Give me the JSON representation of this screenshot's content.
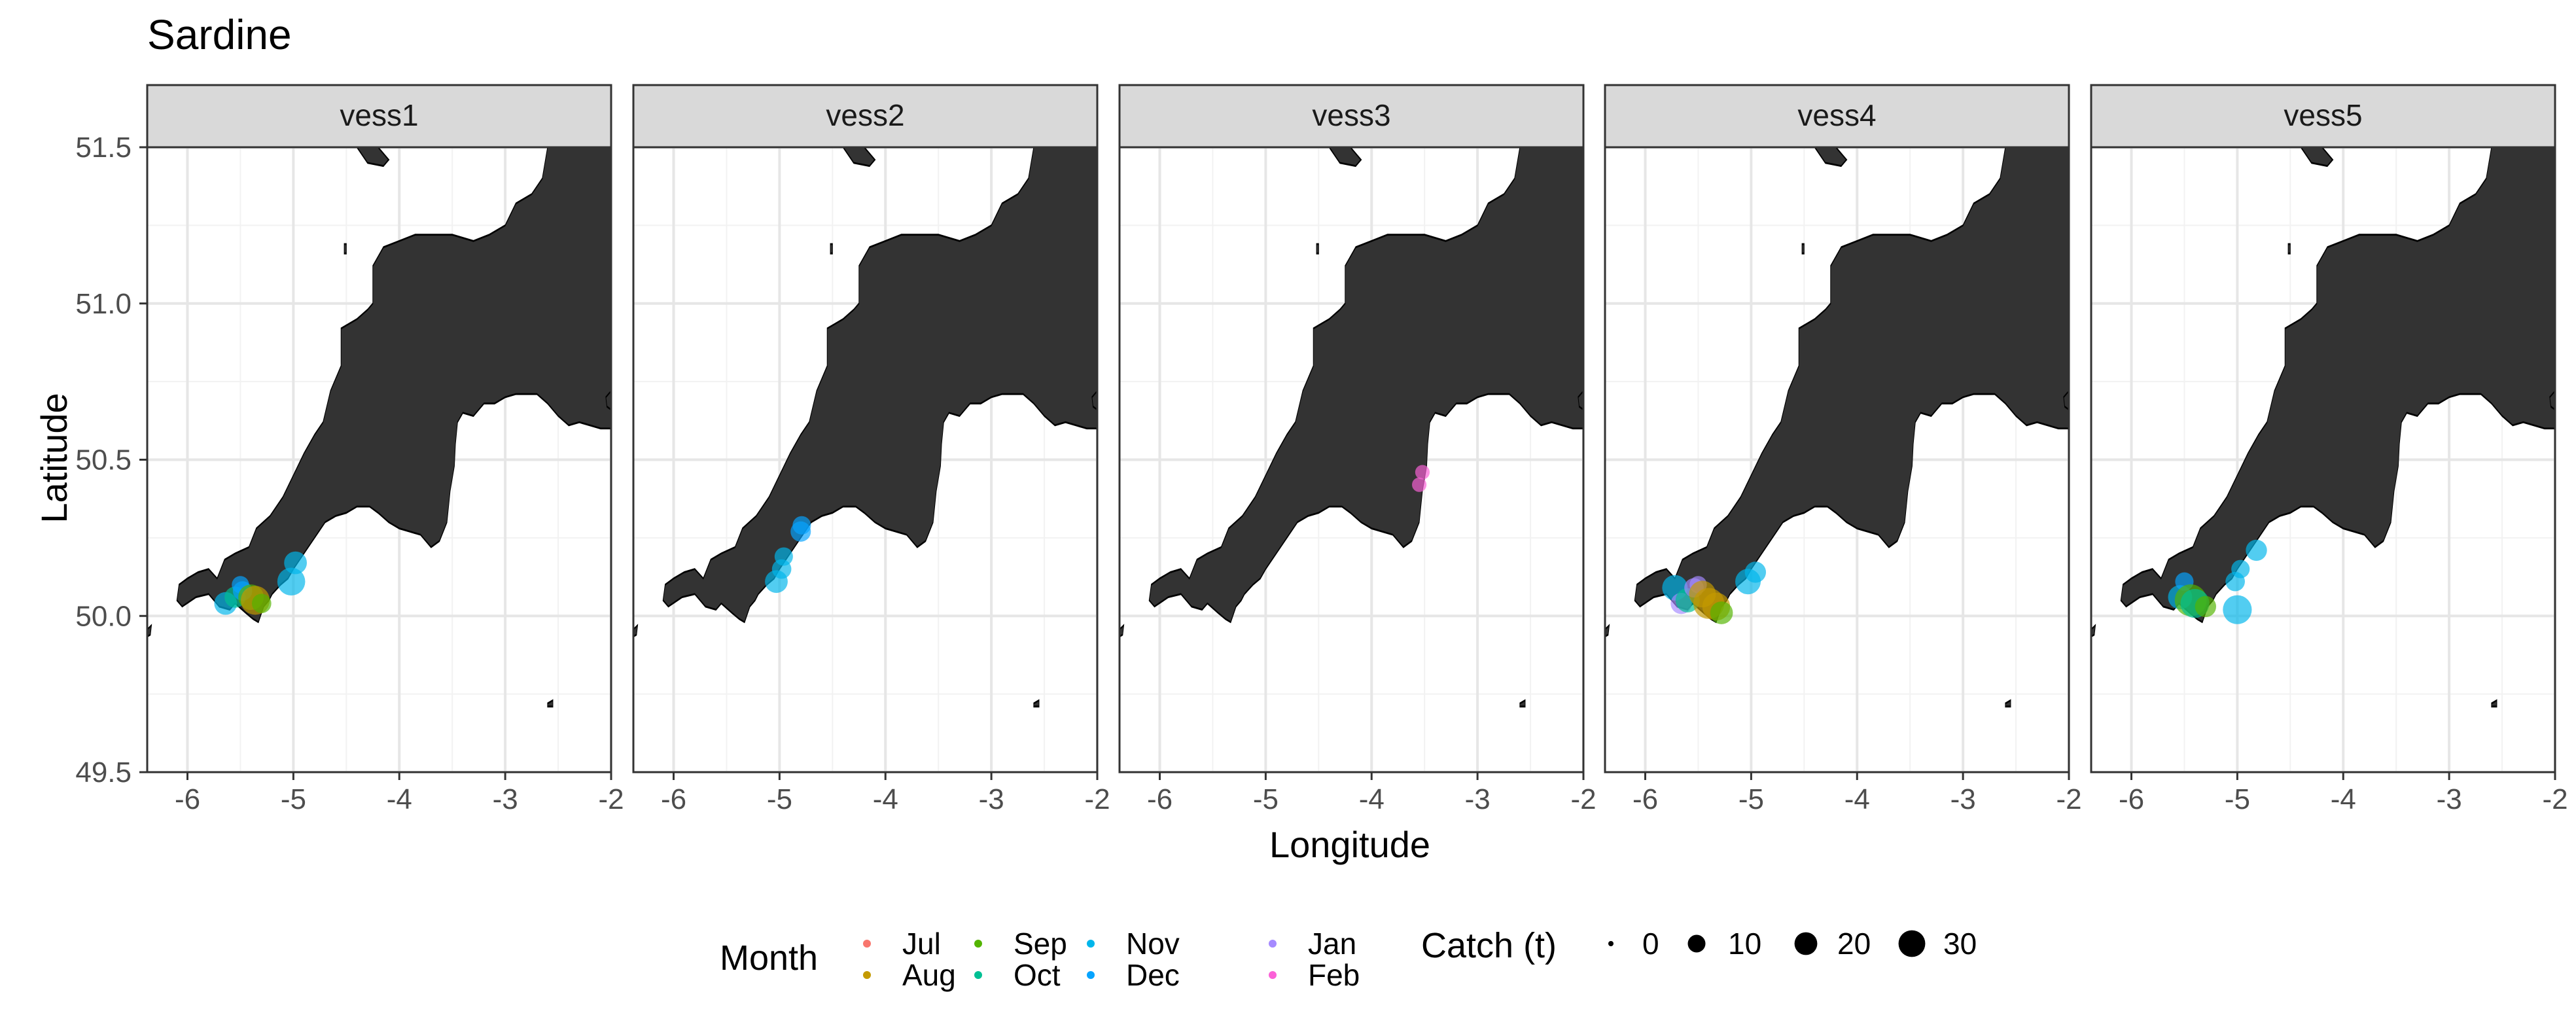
{
  "chart_data": {
    "type": "scatter",
    "title": "Sardine",
    "xlabel": "Longitude",
    "ylabel": "Latitude",
    "xlim": [
      -6.38,
      -2.0
    ],
    "ylim": [
      49.5,
      51.5
    ],
    "x_ticks": [
      -6,
      -5,
      -4,
      -3,
      -2
    ],
    "x_tick_labels": [
      "-6",
      "-5",
      "-4",
      "-3",
      "-2"
    ],
    "y_ticks": [
      49.5,
      50.0,
      50.5,
      51.0,
      51.5
    ],
    "y_tick_labels": [
      "49.5",
      "50.0",
      "50.5",
      "51.0",
      "51.5"
    ],
    "grid": true,
    "basemap": "Cornwall and Devon coastline (land filled dark grey)",
    "facet_variable": "vessel",
    "panels": [
      "vess1",
      "vess2",
      "vess3",
      "vess4",
      "vess5"
    ],
    "legend_position": "bottom",
    "color_legend": {
      "title": "Month",
      "items": [
        {
          "label": "Jul",
          "color": "#F8766D"
        },
        {
          "label": "Aug",
          "color": "#C49A00"
        },
        {
          "label": "Sep",
          "color": "#53B400"
        },
        {
          "label": "Oct",
          "color": "#00C094"
        },
        {
          "label": "Nov",
          "color": "#00B6EB"
        },
        {
          "label": "Dec",
          "color": "#06A4FF"
        },
        {
          "label": "Jan",
          "color": "#A58AFF"
        },
        {
          "label": "Feb",
          "color": "#FB61D7"
        }
      ]
    },
    "size_legend": {
      "title": "Catch (t)",
      "items": [
        {
          "label": "0",
          "value": 0
        },
        {
          "label": "10",
          "value": 10
        },
        {
          "label": "20",
          "value": 20
        },
        {
          "label": "30",
          "value": 30
        }
      ]
    },
    "series": [
      {
        "panel": "vess1",
        "points": [
          {
            "lon": -5.64,
            "lat": 50.04,
            "catch": 10,
            "month": "Nov"
          },
          {
            "lon": -5.55,
            "lat": 50.06,
            "catch": 8,
            "month": "Oct"
          },
          {
            "lon": -5.5,
            "lat": 50.1,
            "catch": 4,
            "month": "Dec"
          },
          {
            "lon": -5.48,
            "lat": 50.08,
            "catch": 6,
            "month": "Dec"
          },
          {
            "lon": -5.4,
            "lat": 50.06,
            "catch": 14,
            "month": "Sep"
          },
          {
            "lon": -5.36,
            "lat": 50.05,
            "catch": 20,
            "month": "Aug"
          },
          {
            "lon": -5.3,
            "lat": 50.04,
            "catch": 6,
            "month": "Sep"
          },
          {
            "lon": -5.02,
            "lat": 50.11,
            "catch": 18,
            "month": "Nov"
          },
          {
            "lon": -4.98,
            "lat": 50.17,
            "catch": 10,
            "month": "Nov"
          }
        ]
      },
      {
        "panel": "vess2",
        "points": [
          {
            "lon": -5.03,
            "lat": 50.11,
            "catch": 10,
            "month": "Nov"
          },
          {
            "lon": -4.98,
            "lat": 50.15,
            "catch": 6,
            "month": "Nov"
          },
          {
            "lon": -4.96,
            "lat": 50.19,
            "catch": 5,
            "month": "Nov"
          },
          {
            "lon": -4.8,
            "lat": 50.27,
            "catch": 7,
            "month": "Dec"
          },
          {
            "lon": -4.79,
            "lat": 50.29,
            "catch": 5,
            "month": "Dec"
          }
        ]
      },
      {
        "panel": "vess3",
        "points": [
          {
            "lon": -3.55,
            "lat": 50.42,
            "catch": 2,
            "month": "Feb"
          },
          {
            "lon": -3.52,
            "lat": 50.46,
            "catch": 2,
            "month": "Feb"
          }
        ]
      },
      {
        "panel": "vess4",
        "points": [
          {
            "lon": -5.72,
            "lat": 50.09,
            "catch": 14,
            "month": "Nov"
          },
          {
            "lon": -5.66,
            "lat": 50.04,
            "catch": 8,
            "month": "Jan"
          },
          {
            "lon": -5.6,
            "lat": 50.05,
            "catch": 12,
            "month": "Oct"
          },
          {
            "lon": -5.54,
            "lat": 50.09,
            "catch": 6,
            "month": "Jan"
          },
          {
            "lon": -5.5,
            "lat": 50.1,
            "catch": 4,
            "month": "Jan"
          },
          {
            "lon": -5.46,
            "lat": 50.07,
            "catch": 16,
            "month": "Aug"
          },
          {
            "lon": -5.4,
            "lat": 50.04,
            "catch": 24,
            "month": "Aug"
          },
          {
            "lon": -5.33,
            "lat": 50.03,
            "catch": 18,
            "month": "Aug"
          },
          {
            "lon": -5.28,
            "lat": 50.01,
            "catch": 10,
            "month": "Sep"
          },
          {
            "lon": -5.03,
            "lat": 50.11,
            "catch": 14,
            "month": "Nov"
          },
          {
            "lon": -4.96,
            "lat": 50.14,
            "catch": 8,
            "month": "Nov"
          }
        ]
      },
      {
        "panel": "vess5",
        "points": [
          {
            "lon": -5.54,
            "lat": 50.06,
            "catch": 12,
            "month": "Nov"
          },
          {
            "lon": -5.5,
            "lat": 50.11,
            "catch": 5,
            "month": "Dec"
          },
          {
            "lon": -5.44,
            "lat": 50.05,
            "catch": 26,
            "month": "Sep"
          },
          {
            "lon": -5.4,
            "lat": 50.04,
            "catch": 20,
            "month": "Oct"
          },
          {
            "lon": -5.3,
            "lat": 50.03,
            "catch": 8,
            "month": "Sep"
          },
          {
            "lon": -5.0,
            "lat": 50.02,
            "catch": 20,
            "month": "Nov"
          },
          {
            "lon": -5.02,
            "lat": 50.11,
            "catch": 6,
            "month": "Nov"
          },
          {
            "lon": -4.97,
            "lat": 50.15,
            "catch": 5,
            "month": "Nov"
          },
          {
            "lon": -4.82,
            "lat": 50.21,
            "catch": 8,
            "month": "Nov"
          }
        ]
      }
    ]
  }
}
